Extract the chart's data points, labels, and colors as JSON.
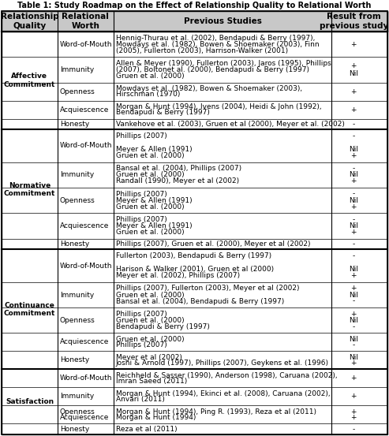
{
  "title": "Table 1: Study Roadmap on the Effect of Relationship Quality to Relational Worth",
  "col_headers": [
    "Relationship\nQuality",
    "Relational\nWorth",
    "Previous Studies",
    "Result from\nprevious study"
  ],
  "col_ratios": [
    0.145,
    0.145,
    0.565,
    0.115
  ],
  "rows": [
    {
      "group": "Affective\nCommitment",
      "relational_worth": "Word-of-Mouth",
      "studies_lines": [
        "Hennig-Thurau et al. (2002), Bendapudi & Berry (1997),",
        "Mowdays et al. (1982), Bowen & Shoemaker (2003), Finn",
        "(2005), Fullerton (2003), Harrison-Walker (2001)"
      ],
      "results_lines": [
        "+"
      ]
    },
    {
      "group": "",
      "relational_worth": "Immunity",
      "studies_lines": [
        "Allen & Meyer (1990), Fullerton (2003), Jaros (1995), Phillips",
        "(2007), Boltonet al. (2000), Bendapudi & Berry (1997)",
        "Gruen et al. (2000)"
      ],
      "results_lines": [
        "+",
        "Nil"
      ]
    },
    {
      "group": "",
      "relational_worth": "Openness",
      "studies_lines": [
        "Mowdays et al. (1982), Bowen & Shoemaker (2003),",
        "Hirschman (1970)"
      ],
      "results_lines": [
        "+"
      ]
    },
    {
      "group": "",
      "relational_worth": "Acquiescence",
      "studies_lines": [
        "Morgan & Hunt (1994), Ivens (2004), Heidi & John (1992),",
        "Bendapudi & Berry (1997)"
      ],
      "results_lines": [
        "+"
      ]
    },
    {
      "group": "",
      "relational_worth": "Honesty",
      "studies_lines": [
        "Vankehove et al. (2003), Gruen et al (2000), Meyer et al. (2002)"
      ],
      "results_lines": [
        "-"
      ]
    },
    {
      "group": "Normative\nCommitment",
      "relational_worth": "Word-of-Mouth",
      "studies_lines": [
        "Phillips (2007)",
        "",
        "Meyer & Allen (1991)",
        "Gruen et al. (2000)"
      ],
      "results_lines": [
        "-",
        "",
        "Nil",
        "+"
      ]
    },
    {
      "group": "",
      "relational_worth": "Immunity",
      "studies_lines": [
        "Bansal et al. (2004), Phillips (2007)",
        "Gruen et al. (2000)",
        "Randall (1990), Meyer et al (2002)"
      ],
      "results_lines": [
        "-",
        "Nil",
        "+"
      ]
    },
    {
      "group": "",
      "relational_worth": "Openness",
      "studies_lines": [
        "Phillips (2007)",
        "Meyer & Allen (1991)",
        "Gruen et al. (2000)"
      ],
      "results_lines": [
        "-",
        "Nil",
        "+"
      ]
    },
    {
      "group": "",
      "relational_worth": "Acquiescence",
      "studies_lines": [
        "Phillips (2007)",
        "Meyer & Allen (1991)",
        "Gruen et al. (2000)"
      ],
      "results_lines": [
        "-",
        "Nil",
        "+"
      ]
    },
    {
      "group": "",
      "relational_worth": "Honesty",
      "studies_lines": [
        "Phillips (2007), Gruen et al. (2000), Meyer et al (2002)"
      ],
      "results_lines": [
        "-"
      ]
    },
    {
      "group": "Continuance\nCommitment",
      "relational_worth": "Word-of-Mouth",
      "studies_lines": [
        "Fullerton (2003), Bendapudi & Berry (1997)",
        "",
        "Harison & Walker (2001), Gruen et al (2000)",
        "Meyer et al. (2002), Phillips (2007)"
      ],
      "results_lines": [
        "-",
        "",
        "Nil",
        "+"
      ]
    },
    {
      "group": "",
      "relational_worth": "Immunity",
      "studies_lines": [
        "Phillips (2007), Fullerton (2003), Meyer et al (2002)",
        "Gruen et al. (2000)",
        "Bansal et al. (2004), Bendapudi & Berry (1997)"
      ],
      "results_lines": [
        "+",
        "Nil",
        "-"
      ]
    },
    {
      "group": "",
      "relational_worth": "Openness",
      "studies_lines": [
        "Phillips (2007)",
        "Gruen et al. (2000)",
        "Bendapudi & Berry (1997)"
      ],
      "results_lines": [
        "+",
        "Nil",
        "-"
      ]
    },
    {
      "group": "",
      "relational_worth": "Acquiescence",
      "studies_lines": [
        "Gruen et al. (2000)",
        "Phillips (2007)"
      ],
      "results_lines": [
        "Nil",
        "-"
      ]
    },
    {
      "group": "",
      "relational_worth": "Honesty",
      "studies_lines": [
        "Meyer et al (2002)",
        "Joshi & Arnold (1997), Phillips (2007), Geykens et al. (1996)"
      ],
      "results_lines": [
        "Nil",
        "+"
      ]
    },
    {
      "group": "Satisfaction",
      "relational_worth": "Word-of-Mouth",
      "studies_lines": [
        "Reichheld & Sasser (1990), Anderson (1998), Caruana (2002),",
        "Imran Saeed (2011)"
      ],
      "results_lines": [
        "+"
      ]
    },
    {
      "group": "",
      "relational_worth": "Immunity",
      "studies_lines": [
        "Morgan & Hunt (1994), Ekinci et al. (2008), Caruana (2002),",
        "Anvari (2011)"
      ],
      "results_lines": [
        "+"
      ]
    },
    {
      "group": "",
      "relational_worth": "Openness\nAcquiescence",
      "studies_lines": [
        "Morgan & Hunt (1994), Ping R. (1993), Reza et al (2011)",
        "Morgan & Hunt (1994)"
      ],
      "results_lines": [
        "+",
        "+"
      ]
    },
    {
      "group": "",
      "relational_worth": "Honesty",
      "studies_lines": [
        "Reza et al (2011)"
      ],
      "results_lines": [
        "-"
      ]
    }
  ],
  "header_bg": "#c8c8c8",
  "font_size": 6.5,
  "header_font_size": 7.5,
  "title_fontsize": 7.0
}
